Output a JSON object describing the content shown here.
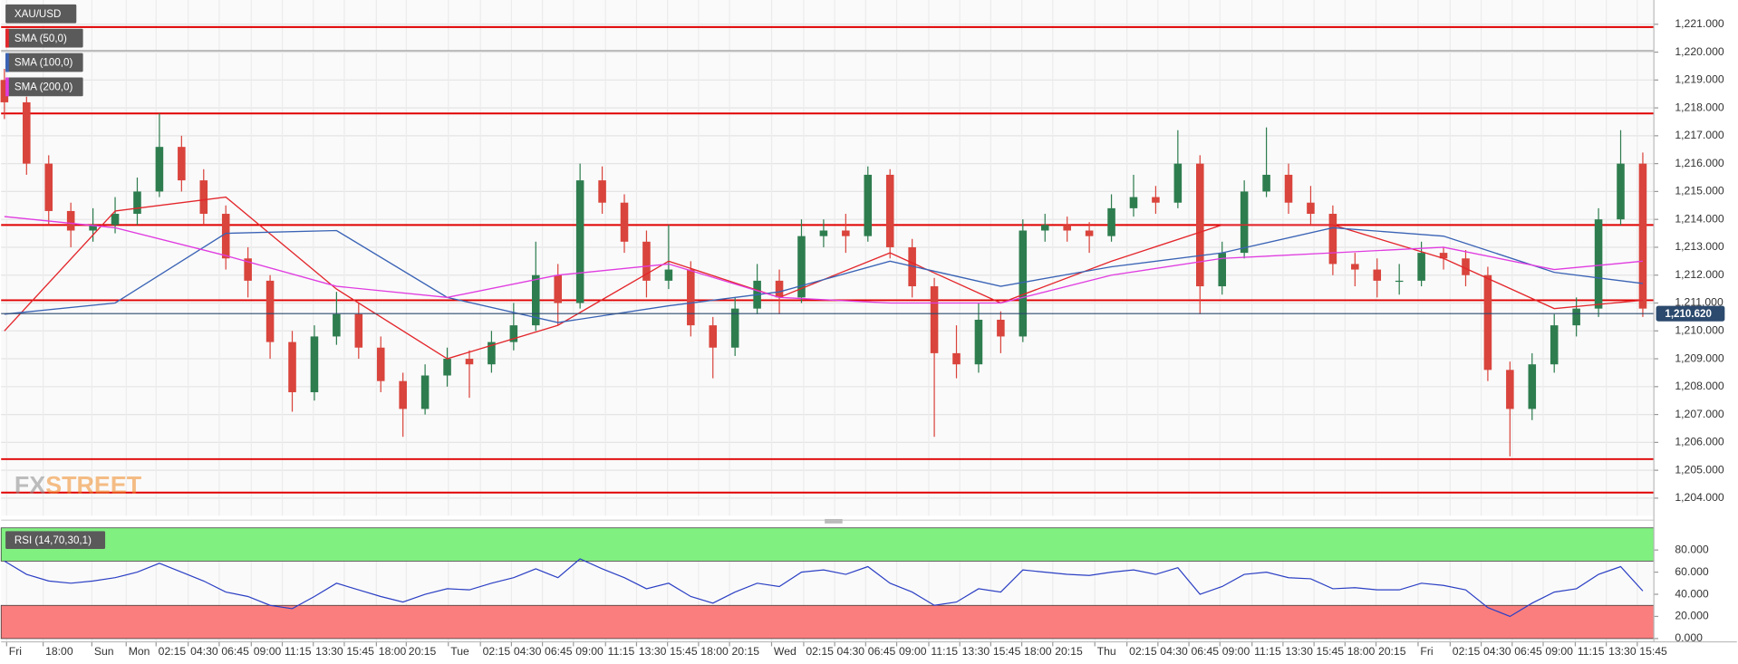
{
  "chart_data": [
    {
      "type": "candlestick",
      "symbol": "XAU/USD",
      "watermark": [
        "FX",
        "STREET"
      ],
      "up_color": "#2e7d4f",
      "down_color": "#d9443c",
      "grid": true,
      "xlim": [
        -0.15,
        74.5
      ],
      "ylim": [
        1203.37,
        1221.87
      ],
      "yticks": [
        {
          "value": 1204,
          "label": "1,204.000"
        },
        {
          "value": 1205,
          "label": "1,205.000"
        },
        {
          "value": 1206,
          "label": "1,206.000"
        },
        {
          "value": 1207,
          "label": "1,207.000"
        },
        {
          "value": 1208,
          "label": "1,208.000"
        },
        {
          "value": 1209,
          "label": "1,209.000"
        },
        {
          "value": 1210,
          "label": "1,210.000"
        },
        {
          "value": 1211,
          "label": "1,211.000"
        },
        {
          "value": 1212,
          "label": "1,212.000"
        },
        {
          "value": 1213,
          "label": "1,213.000"
        },
        {
          "value": 1214,
          "label": "1,214.000"
        },
        {
          "value": 1215,
          "label": "1,215.000"
        },
        {
          "value": 1216,
          "label": "1,216.000"
        },
        {
          "value": 1217,
          "label": "1,217.000"
        },
        {
          "value": 1218,
          "label": "1,218.000"
        },
        {
          "value": 1219,
          "label": "1,219.000"
        },
        {
          "value": 1220,
          "label": "1,220.000"
        },
        {
          "value": 1221,
          "label": "1,221.000"
        }
      ],
      "xticks": [
        {
          "value": 0.1,
          "label": "Fri"
        },
        {
          "value": 1.75,
          "label": "18:00"
        },
        {
          "value": 3.95,
          "label": "Sun"
        },
        {
          "value": 5.5,
          "label": "Mon"
        },
        {
          "value": 6.85,
          "label": "02:15"
        },
        {
          "value": 8.3,
          "label": "04:30"
        },
        {
          "value": 9.7,
          "label": "06:45"
        },
        {
          "value": 11.15,
          "label": "09:00"
        },
        {
          "value": 12.55,
          "label": "11:15"
        },
        {
          "value": 13.95,
          "label": "13:30"
        },
        {
          "value": 15.35,
          "label": "15:45"
        },
        {
          "value": 16.8,
          "label": "18:00"
        },
        {
          "value": 18.15,
          "label": "20:15"
        },
        {
          "value": 20.05,
          "label": "Tue"
        },
        {
          "value": 21.5,
          "label": "02:15"
        },
        {
          "value": 22.9,
          "label": "04:30"
        },
        {
          "value": 24.3,
          "label": "06:45"
        },
        {
          "value": 25.7,
          "label": "09:00"
        },
        {
          "value": 27.15,
          "label": "11:15"
        },
        {
          "value": 28.55,
          "label": "13:30"
        },
        {
          "value": 29.95,
          "label": "15:45"
        },
        {
          "value": 31.35,
          "label": "18:00"
        },
        {
          "value": 32.75,
          "label": "20:15"
        },
        {
          "value": 34.65,
          "label": "Wed"
        },
        {
          "value": 36.1,
          "label": "02:15"
        },
        {
          "value": 37.5,
          "label": "04:30"
        },
        {
          "value": 38.9,
          "label": "06:45"
        },
        {
          "value": 40.3,
          "label": "09:00"
        },
        {
          "value": 41.75,
          "label": "11:15"
        },
        {
          "value": 43.15,
          "label": "13:30"
        },
        {
          "value": 44.55,
          "label": "15:45"
        },
        {
          "value": 45.95,
          "label": "18:00"
        },
        {
          "value": 47.35,
          "label": "20:15"
        },
        {
          "value": 49.25,
          "label": "Thu"
        },
        {
          "value": 50.7,
          "label": "02:15"
        },
        {
          "value": 52.1,
          "label": "04:30"
        },
        {
          "value": 53.5,
          "label": "06:45"
        },
        {
          "value": 54.9,
          "label": "09:00"
        },
        {
          "value": 56.35,
          "label": "11:15"
        },
        {
          "value": 57.75,
          "label": "13:30"
        },
        {
          "value": 59.15,
          "label": "15:45"
        },
        {
          "value": 60.55,
          "label": "18:00"
        },
        {
          "value": 61.95,
          "label": "20:15"
        },
        {
          "value": 63.85,
          "label": "Fri"
        },
        {
          "value": 65.3,
          "label": "02:15"
        },
        {
          "value": 66.7,
          "label": "04:30"
        },
        {
          "value": 68.1,
          "label": "06:45"
        },
        {
          "value": 69.5,
          "label": "09:00"
        },
        {
          "value": 70.95,
          "label": "11:15"
        },
        {
          "value": 72.35,
          "label": "13:30"
        },
        {
          "value": 73.75,
          "label": "15:45"
        }
      ],
      "candles": [
        [
          1219.0,
          1219.4,
          1217.6,
          1218.2
        ],
        [
          1218.2,
          1218.4,
          1215.6,
          1216.0
        ],
        [
          1216.0,
          1216.3,
          1213.8,
          1214.3
        ],
        [
          1214.3,
          1214.6,
          1213.0,
          1213.6
        ],
        [
          1213.6,
          1214.4,
          1213.2,
          1213.8
        ],
        [
          1213.8,
          1214.8,
          1213.5,
          1214.2
        ],
        [
          1214.2,
          1215.5,
          1213.8,
          1215.0
        ],
        [
          1215.0,
          1217.8,
          1214.8,
          1216.6
        ],
        [
          1216.6,
          1217.0,
          1215.0,
          1215.4
        ],
        [
          1215.4,
          1215.8,
          1213.8,
          1214.2
        ],
        [
          1214.2,
          1214.5,
          1212.2,
          1212.6
        ],
        [
          1212.6,
          1213.0,
          1211.2,
          1211.8
        ],
        [
          1211.8,
          1212.0,
          1209.0,
          1209.6
        ],
        [
          1209.6,
          1210.0,
          1207.1,
          1207.8
        ],
        [
          1207.8,
          1210.2,
          1207.5,
          1209.8
        ],
        [
          1209.8,
          1211.4,
          1209.5,
          1210.6
        ],
        [
          1210.6,
          1211.0,
          1209.0,
          1209.4
        ],
        [
          1209.4,
          1209.8,
          1207.8,
          1208.2
        ],
        [
          1208.2,
          1208.5,
          1206.2,
          1207.2
        ],
        [
          1207.2,
          1208.8,
          1207.0,
          1208.4
        ],
        [
          1208.4,
          1209.4,
          1208.0,
          1209.0
        ],
        [
          1209.0,
          1209.3,
          1207.6,
          1208.8
        ],
        [
          1208.8,
          1210.0,
          1208.5,
          1209.6
        ],
        [
          1209.6,
          1211.0,
          1209.3,
          1210.2
        ],
        [
          1210.2,
          1213.2,
          1210.0,
          1212.0
        ],
        [
          1212.0,
          1212.4,
          1210.2,
          1211.0
        ],
        [
          1211.0,
          1216.0,
          1210.8,
          1215.4
        ],
        [
          1215.4,
          1215.9,
          1214.2,
          1214.6
        ],
        [
          1214.6,
          1214.9,
          1212.8,
          1213.2
        ],
        [
          1213.2,
          1213.6,
          1211.2,
          1211.8
        ],
        [
          1211.8,
          1213.8,
          1211.5,
          1212.2
        ],
        [
          1212.2,
          1212.5,
          1209.8,
          1210.2
        ],
        [
          1210.2,
          1210.5,
          1208.3,
          1209.4
        ],
        [
          1209.4,
          1211.2,
          1209.1,
          1210.8
        ],
        [
          1210.8,
          1212.4,
          1210.6,
          1211.8
        ],
        [
          1211.8,
          1212.2,
          1210.6,
          1211.2
        ],
        [
          1211.2,
          1214.0,
          1211.0,
          1213.4
        ],
        [
          1213.4,
          1214.0,
          1213.0,
          1213.6
        ],
        [
          1213.6,
          1214.2,
          1212.8,
          1213.4
        ],
        [
          1213.4,
          1215.9,
          1213.2,
          1215.6
        ],
        [
          1215.6,
          1215.8,
          1212.6,
          1213.0
        ],
        [
          1213.0,
          1213.3,
          1211.2,
          1211.6
        ],
        [
          1211.6,
          1211.9,
          1206.2,
          1209.2
        ],
        [
          1209.2,
          1210.2,
          1208.3,
          1208.8
        ],
        [
          1208.8,
          1211.0,
          1208.5,
          1210.4
        ],
        [
          1210.4,
          1210.7,
          1209.2,
          1209.8
        ],
        [
          1209.8,
          1214.0,
          1209.6,
          1213.6
        ],
        [
          1213.6,
          1214.2,
          1213.2,
          1213.8
        ],
        [
          1213.8,
          1214.1,
          1213.2,
          1213.6
        ],
        [
          1213.6,
          1213.9,
          1212.8,
          1213.4
        ],
        [
          1213.4,
          1214.9,
          1213.2,
          1214.4
        ],
        [
          1214.4,
          1215.6,
          1214.1,
          1214.8
        ],
        [
          1214.8,
          1215.2,
          1214.2,
          1214.6
        ],
        [
          1214.6,
          1217.2,
          1214.4,
          1216.0
        ],
        [
          1216.0,
          1216.3,
          1210.6,
          1211.6
        ],
        [
          1211.6,
          1213.2,
          1211.3,
          1212.8
        ],
        [
          1212.8,
          1215.4,
          1212.6,
          1215.0
        ],
        [
          1215.0,
          1217.3,
          1214.8,
          1215.6
        ],
        [
          1215.6,
          1216.0,
          1214.2,
          1214.6
        ],
        [
          1214.6,
          1215.2,
          1213.8,
          1214.2
        ],
        [
          1214.2,
          1214.5,
          1212.0,
          1212.4
        ],
        [
          1212.4,
          1212.8,
          1211.6,
          1212.2
        ],
        [
          1212.2,
          1212.6,
          1211.2,
          1211.8
        ],
        [
          1211.8,
          1212.4,
          1211.3,
          1211.8
        ],
        [
          1211.8,
          1213.2,
          1211.6,
          1212.8
        ],
        [
          1212.8,
          1213.0,
          1212.2,
          1212.6
        ],
        [
          1212.6,
          1212.9,
          1211.6,
          1212.0
        ],
        [
          1212.0,
          1212.3,
          1208.2,
          1208.6
        ],
        [
          1208.6,
          1208.9,
          1205.5,
          1207.2
        ],
        [
          1207.2,
          1209.2,
          1206.8,
          1208.8
        ],
        [
          1208.8,
          1210.6,
          1208.5,
          1210.2
        ],
        [
          1210.2,
          1211.2,
          1209.8,
          1210.8
        ],
        [
          1210.8,
          1214.4,
          1210.5,
          1214.0
        ],
        [
          1214.0,
          1217.2,
          1213.8,
          1216.0
        ],
        [
          1216.0,
          1216.4,
          1210.5,
          1210.8
        ]
      ],
      "series": [
        {
          "name": "SMA (50,0)",
          "color": "#e3262b",
          "x": [
            0,
            5,
            10,
            15,
            20,
            25,
            30,
            35,
            40,
            45,
            50,
            55,
            60,
            65,
            70,
            74
          ],
          "values": [
            1210.0,
            1214.3,
            1214.8,
            1211.5,
            1209.0,
            1210.2,
            1212.5,
            1211.2,
            1212.8,
            1211.0,
            1212.5,
            1213.8,
            1213.8,
            1212.6,
            1210.8,
            1211.1
          ]
        },
        {
          "name": "SMA (100,0)",
          "color": "#3a63b5",
          "x": [
            0,
            5,
            10,
            15,
            20,
            25,
            30,
            35,
            40,
            45,
            50,
            55,
            60,
            65,
            70,
            74
          ],
          "values": [
            1210.6,
            1211.0,
            1213.5,
            1213.6,
            1211.2,
            1210.3,
            1210.9,
            1211.4,
            1212.5,
            1211.6,
            1212.3,
            1212.8,
            1213.7,
            1213.4,
            1212.1,
            1211.7
          ]
        },
        {
          "name": "SMA (200,0)",
          "color": "#e03ce0",
          "x": [
            0,
            5,
            10,
            15,
            20,
            25,
            30,
            35,
            40,
            45,
            50,
            55,
            60,
            65,
            70,
            74
          ],
          "values": [
            1214.1,
            1213.7,
            1212.7,
            1211.6,
            1211.2,
            1212.0,
            1212.4,
            1211.2,
            1211.0,
            1211.0,
            1212.0,
            1212.6,
            1212.8,
            1213.0,
            1212.2,
            1212.5
          ]
        }
      ],
      "levels": [
        1220.9,
        1217.8,
        1213.8,
        1211.1,
        1205.4,
        1204.2
      ],
      "level_color": "#e00000",
      "reference_line": 1220.05,
      "reference_color": "#9a9a9a",
      "last_price": {
        "value": 1210.62,
        "label": "1,210.620"
      },
      "last_price_color": "#2c4a6e"
    },
    {
      "type": "line",
      "name": "RSI (14,70,30,1)",
      "color": "#2b3fc4",
      "xlim": [
        -0.15,
        74.5
      ],
      "ylim": [
        -3,
        100
      ],
      "yticks": [
        {
          "value": 0,
          "label": "0.000"
        },
        {
          "value": 20,
          "label": "20.000"
        },
        {
          "value": 40,
          "label": "40.000"
        },
        {
          "value": 60,
          "label": "60.000"
        },
        {
          "value": 80,
          "label": "80.000"
        }
      ],
      "bands": [
        {
          "from": 70,
          "to": 100,
          "color": "#80f080"
        },
        {
          "from": 0,
          "to": 30,
          "color": "#fa7e7e"
        }
      ],
      "values": [
        70,
        58,
        52,
        50,
        52,
        55,
        60,
        68,
        60,
        52,
        42,
        38,
        30,
        27,
        38,
        50,
        44,
        38,
        33,
        40,
        45,
        44,
        50,
        55,
        63,
        55,
        72,
        63,
        55,
        45,
        50,
        38,
        32,
        42,
        50,
        47,
        60,
        62,
        58,
        65,
        50,
        42,
        30,
        33,
        45,
        42,
        62,
        60,
        58,
        57,
        60,
        62,
        58,
        64,
        40,
        47,
        58,
        60,
        55,
        54,
        45,
        46,
        44,
        44,
        50,
        48,
        44,
        28,
        20,
        32,
        42,
        45,
        58,
        65,
        43
      ]
    }
  ]
}
